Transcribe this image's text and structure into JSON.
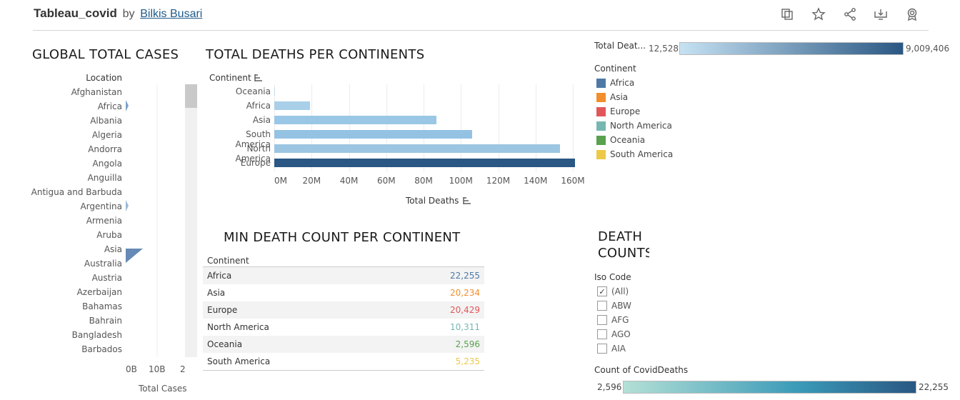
{
  "header": {
    "workbook_title": "Tableau_covid",
    "by_text": "by",
    "author": "Bilkis Busari",
    "icons": [
      "duplicate-icon",
      "star-icon",
      "share-icon",
      "download-icon",
      "badge-icon"
    ]
  },
  "global_cases": {
    "title": "GLOBAL TOTAL CASES",
    "row_header": "Location",
    "locations": [
      "Afghanistan",
      "Africa",
      "Albania",
      "Algeria",
      "Andorra",
      "Angola",
      "Anguilla",
      "Antigua and Barbuda",
      "Argentina",
      "Armenia",
      "Aruba",
      "Asia",
      "Australia",
      "Austria",
      "Azerbaijan",
      "Bahamas",
      "Bahrain",
      "Bangladesh",
      "Barbados"
    ],
    "x_ticks": [
      "0B",
      "10B",
      "2"
    ],
    "x_label": "Total Cases"
  },
  "deaths_chart": {
    "title": "TOTAL DEATHS PER CONTINENTS",
    "row_header": "Continent",
    "x_label": "Total Deaths",
    "x_ticks": [
      "0M",
      "20M",
      "40M",
      "60M",
      "80M",
      "100M",
      "120M",
      "140M",
      "160M"
    ]
  },
  "chart_data": {
    "type": "bar",
    "orientation": "horizontal",
    "categories": [
      "Oceania",
      "Africa",
      "Asia",
      "South America",
      "North America",
      "Europe"
    ],
    "values": [
      0.2,
      19,
      87,
      106,
      153,
      161
    ],
    "xlabel": "Total Deaths",
    "ylabel": "Continent",
    "xlim": [
      0,
      160
    ],
    "x_unit": "M",
    "colors": [
      "#c6dbef",
      "#a9cfe9",
      "#9ac7e5",
      "#94c2e3",
      "#9cc5e2",
      "#2a5783"
    ]
  },
  "deaths_legend": {
    "title": "Total Deat...",
    "min": "12,528",
    "max": "9,009,406",
    "gradient": [
      "#c6e2f3",
      "#2a5783"
    ]
  },
  "continent_legend": {
    "title": "Continent",
    "items": [
      {
        "label": "Africa",
        "color": "#4e79a7"
      },
      {
        "label": "Asia",
        "color": "#f28e2b"
      },
      {
        "label": "Europe",
        "color": "#e15759"
      },
      {
        "label": "North America",
        "color": "#76b7b2"
      },
      {
        "label": "Oceania",
        "color": "#59a14f"
      },
      {
        "label": "South America",
        "color": "#edc948"
      }
    ]
  },
  "min_death": {
    "title": "MIN DEATH COUNT PER CONTINENT",
    "column_header": "Continent",
    "rows": [
      {
        "continent": "Africa",
        "value": "22,255",
        "color": "#4e79a7"
      },
      {
        "continent": "Asia",
        "value": "20,234",
        "color": "#f28e2b"
      },
      {
        "continent": "Europe",
        "value": "20,429",
        "color": "#e15759"
      },
      {
        "continent": "North America",
        "value": "10,311",
        "color": "#76b7b2"
      },
      {
        "continent": "Oceania",
        "value": "2,596",
        "color": "#59a14f"
      },
      {
        "continent": "South America",
        "value": "5,235",
        "color": "#edc948"
      }
    ]
  },
  "death_counts": {
    "title_line1": "DEATH",
    "title_line2": "COUNTS",
    "filter_label": "Iso Code",
    "options": [
      {
        "label": "(All)",
        "checked": true
      },
      {
        "label": "ABW",
        "checked": false
      },
      {
        "label": "AFG",
        "checked": false
      },
      {
        "label": "AGO",
        "checked": false
      },
      {
        "label": "AIA",
        "checked": false
      }
    ],
    "count_legend_title": "Count of CovidDeaths",
    "count_min": "2,596",
    "count_max": "22,255",
    "count_gradient": [
      "#b4e0d6",
      "#2a5783"
    ]
  }
}
